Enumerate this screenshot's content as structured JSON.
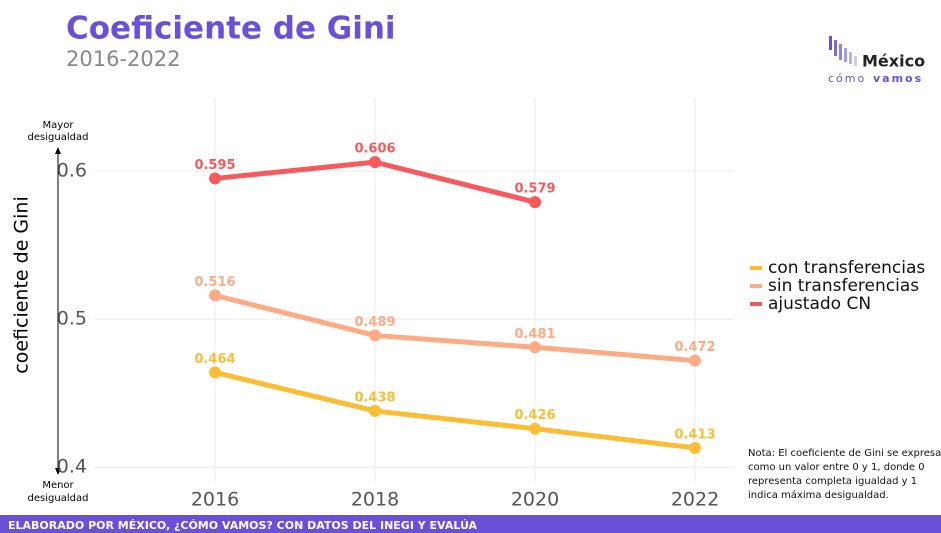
{
  "chart_data": {
    "type": "line",
    "title": "Coeficiente de Gini",
    "subtitle": "2016-2022",
    "y_label": "coeficiente de Gini",
    "y_top_note": [
      "Mayor",
      "desigualdad"
    ],
    "y_bottom_note": [
      "Menor",
      "desigualdad"
    ],
    "x": [
      2016,
      2018,
      2020,
      2022
    ],
    "xlim": [
      2014.5,
      2022.5
    ],
    "xticks": [
      2016,
      2018,
      2020,
      2022
    ],
    "ylim": [
      0.39,
      0.65
    ],
    "yticks": [
      0.4,
      0.5,
      0.6
    ],
    "grid": true,
    "legend": "right",
    "series": [
      {
        "name": "con transferencias",
        "color": "#fbbd33",
        "values": [
          0.464,
          0.438,
          0.426,
          0.413
        ]
      },
      {
        "name": "sin transferencias",
        "color": "#fdab85",
        "values": [
          0.516,
          0.489,
          0.481,
          0.472
        ]
      },
      {
        "name": "ajustado CN",
        "color": "#f8595d",
        "values": [
          0.595,
          0.606,
          0.579,
          null
        ]
      }
    ],
    "note": [
      "Nota: El coeficiente de Gini se expresa",
      "como un valor entre 0 y 1, donde 0",
      "representa completa igualdad y 1",
      "indica máxima desigualdad."
    ],
    "footer": "ELABORADO POR MÉXICO, ¿CÓMO VAMOS? CON DATOS DEL INEGI Y EVALÚA",
    "logo": {
      "name": "México",
      "tagline_1": "cómo",
      "tagline_2": "vamos"
    }
  }
}
